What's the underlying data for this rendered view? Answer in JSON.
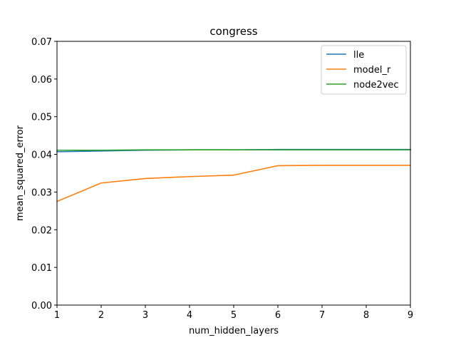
{
  "chart_data": {
    "type": "line",
    "title": "congress",
    "xlabel": "num_hidden_layers",
    "ylabel": "mean_squared_error",
    "x": [
      1,
      2,
      3,
      4,
      5,
      6,
      7,
      8,
      9
    ],
    "xlim": [
      1,
      9
    ],
    "ylim": [
      0,
      0.07
    ],
    "xticks": [
      1,
      2,
      3,
      4,
      5,
      6,
      7,
      8,
      9
    ],
    "yticks": [
      0.0,
      0.01,
      0.02,
      0.03,
      0.04,
      0.05,
      0.06,
      0.07
    ],
    "xtick_labels": [
      "1",
      "2",
      "3",
      "4",
      "5",
      "6",
      "7",
      "8",
      "9"
    ],
    "ytick_labels": [
      "0.00",
      "0.01",
      "0.02",
      "0.03",
      "0.04",
      "0.05",
      "0.06",
      "0.07"
    ],
    "grid": false,
    "legend_position": "top-right",
    "series": [
      {
        "name": "lle",
        "color": "#1f77b4",
        "values": [
          0.0407,
          0.0409,
          0.0411,
          0.0412,
          0.0412,
          0.0413,
          0.0413,
          0.0413,
          0.0413
        ]
      },
      {
        "name": "model_r",
        "color": "#ff7f0e",
        "values": [
          0.0275,
          0.0324,
          0.0336,
          0.0341,
          0.0345,
          0.037,
          0.0371,
          0.0371,
          0.0371
        ]
      },
      {
        "name": "node2vec",
        "color": "#2ca02c",
        "values": [
          0.0411,
          0.0411,
          0.0412,
          0.0412,
          0.0412,
          0.0412,
          0.0412,
          0.0412,
          0.0412
        ]
      }
    ]
  }
}
